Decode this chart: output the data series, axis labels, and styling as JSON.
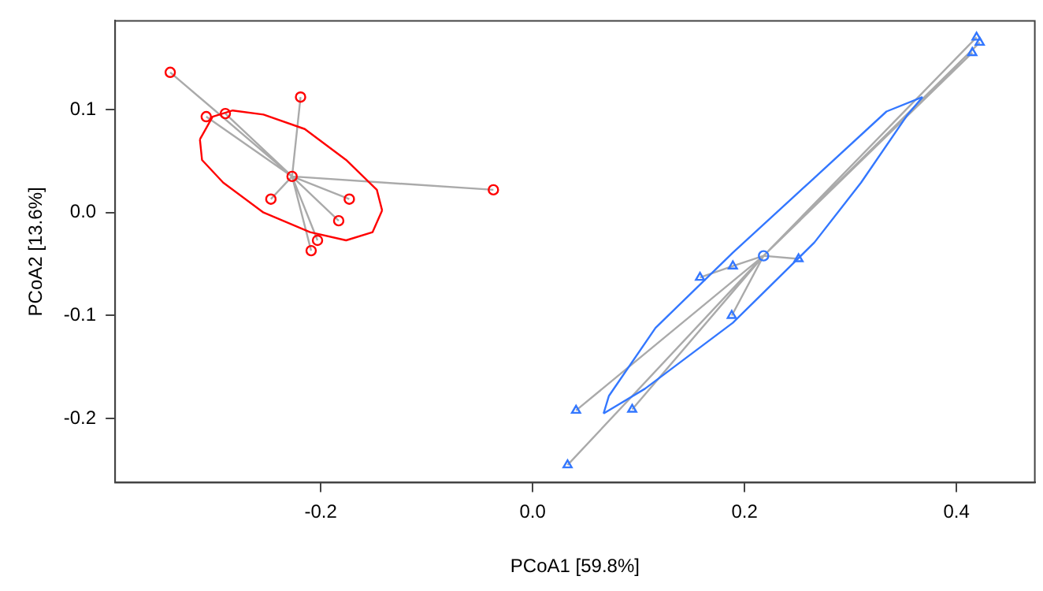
{
  "chart_data": {
    "type": "scatter",
    "xlabel": "PCoA1 [59.8%]",
    "ylabel": "PCoA2 [13.6%]",
    "xlim": [
      -0.394,
      0.474
    ],
    "ylim": [
      -0.262,
      0.186
    ],
    "xticks": [
      -0.2,
      {
        "value": 0,
        "label": "0.0"
      },
      0.2,
      0.4
    ],
    "yticks": [
      -0.2,
      -0.1,
      {
        "value": 0,
        "label": "0.0"
      },
      0.1
    ],
    "grid": false,
    "legend": false,
    "series": [
      {
        "type": "scatter",
        "color": "#ff0000",
        "marker": "circle",
        "x": [
          -0.227
        ],
        "values": [
          0.035
        ]
      },
      {
        "type": "scatter",
        "color": "#3377ff",
        "marker": "circle",
        "x": [
          0.218
        ],
        "values": [
          -0.042
        ]
      },
      {
        "type": "scatter",
        "color": "#ff0000",
        "marker": "circle",
        "x": [
          -0.342,
          -0.308,
          -0.29,
          -0.219,
          -0.247,
          -0.173,
          -0.183,
          -0.203,
          -0.209,
          -0.037
        ],
        "values": [
          0.136,
          0.093,
          0.096,
          0.112,
          0.013,
          0.013,
          -0.008,
          -0.027,
          -0.037,
          0.022
        ]
      },
      {
        "type": "scatter",
        "color": "#3377ff",
        "marker": "triangle",
        "x": [
          0.419,
          0.422,
          0.415,
          0.251,
          0.189,
          0.158,
          0.188,
          0.041,
          0.094,
          0.033
        ],
        "values": [
          0.17,
          0.165,
          0.155,
          -0.045,
          -0.052,
          -0.063,
          -0.1,
          -0.192,
          -0.191,
          -0.245
        ]
      },
      {
        "type": "line",
        "color": "#ff0000",
        "marker": "none",
        "x": [
          -0.314,
          -0.302,
          -0.283,
          -0.254,
          -0.215,
          -0.176,
          -0.147,
          -0.142
        ],
        "values": [
          0.071,
          0.093,
          0.099,
          0.095,
          0.081,
          0.051,
          0.022,
          0.002
        ]
      },
      {
        "type": "line",
        "color": "#ff0000",
        "marker": "none",
        "x": [
          -0.314,
          -0.312,
          -0.292,
          -0.254,
          -0.21,
          -0.176,
          -0.151,
          -0.142
        ],
        "values": [
          0.071,
          0.051,
          0.029,
          0.0,
          -0.019,
          -0.027,
          -0.019,
          0.002
        ]
      },
      {
        "type": "line",
        "color": "#3377ff",
        "marker": "none",
        "x": [
          0.067,
          0.072,
          0.116,
          0.189,
          0.261,
          0.334,
          0.368
        ],
        "values": [
          -0.195,
          -0.178,
          -0.112,
          -0.039,
          0.029,
          0.098,
          0.112
        ]
      },
      {
        "type": "line",
        "color": "#3377ff",
        "marker": "none",
        "x": [
          0.067,
          0.106,
          0.189,
          0.266,
          0.31,
          0.354,
          0.368
        ],
        "values": [
          -0.195,
          -0.171,
          -0.107,
          -0.029,
          0.029,
          0.095,
          0.112
        ]
      },
      {
        "type": "line",
        "color": "#aaaaaa",
        "marker": "none",
        "x": [
          -0.342,
          -0.227,
          null,
          -0.308,
          -0.227,
          null,
          -0.29,
          -0.227,
          null,
          -0.219,
          -0.227,
          null,
          -0.247,
          -0.227,
          null,
          -0.173,
          -0.227,
          null,
          -0.183,
          -0.227,
          null,
          -0.203,
          -0.227,
          null,
          -0.209,
          -0.227,
          null,
          -0.037,
          -0.227
        ],
        "values": [
          0.136,
          0.035,
          null,
          0.093,
          0.035,
          null,
          0.096,
          0.035,
          null,
          0.112,
          0.035,
          null,
          0.013,
          0.035,
          null,
          0.013,
          0.035,
          null,
          -0.008,
          0.035,
          null,
          -0.027,
          0.035,
          null,
          -0.037,
          0.035,
          null,
          0.022,
          0.035
        ]
      },
      {
        "type": "line",
        "color": "#aaaaaa",
        "marker": "none",
        "x": [
          0.419,
          0.218,
          null,
          0.422,
          0.218,
          null,
          0.415,
          0.218,
          null,
          0.251,
          0.218,
          null,
          0.189,
          0.218,
          null,
          0.158,
          0.189,
          null,
          0.188,
          0.218,
          null,
          0.041,
          0.218,
          null,
          0.094,
          0.218,
          null,
          0.033,
          0.218
        ],
        "values": [
          0.17,
          -0.042,
          null,
          0.165,
          -0.042,
          null,
          0.155,
          -0.042,
          null,
          -0.045,
          -0.042,
          null,
          -0.052,
          -0.042,
          null,
          -0.063,
          -0.052,
          null,
          -0.1,
          -0.042,
          null,
          -0.192,
          -0.042,
          null,
          -0.191,
          -0.042,
          null,
          -0.245,
          -0.042
        ]
      }
    ]
  }
}
